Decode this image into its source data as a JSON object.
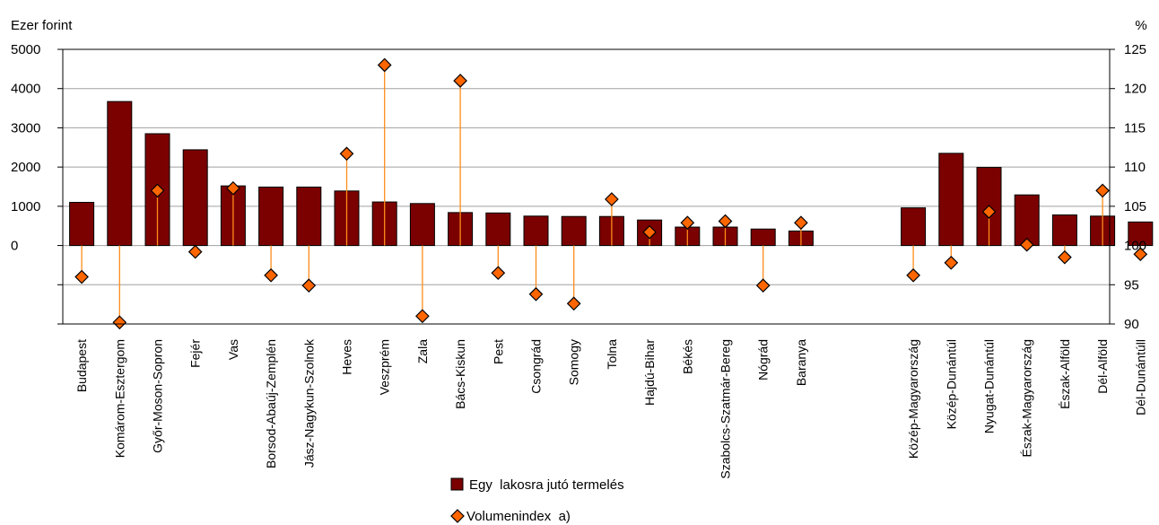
{
  "chart_data": {
    "type": "bar",
    "title": "",
    "ylabel_left": "Ezer forint",
    "ylabel_right": "%",
    "ylim_left": [
      -2000,
      5000
    ],
    "ylim_right": [
      90,
      125
    ],
    "left_ticks": [
      "5000",
      "4000",
      "3000",
      "2000",
      "1000",
      "0"
    ],
    "right_ticks": [
      "125",
      "120",
      "115",
      "110",
      "105",
      "100",
      "95",
      "90"
    ],
    "grid": true,
    "legend_position": "bottom-center",
    "colors": {
      "bar": "#7b0000",
      "marker": "#ff6600",
      "stem": "#ff8c1a",
      "grid": "#a0a0a0"
    },
    "categories": [
      "Budapest",
      "Komárom-Esztergom",
      "Győr-Moson-Sopron",
      "Fejér",
      "Vas",
      "Borsod-Abaúj-Zemplén",
      "Jász-Nagykun-Szolnok",
      "Heves",
      "Veszprém",
      "Zala",
      "Bács-Kiskun",
      "Pest",
      "Csongrád",
      "Somogy",
      "Tolna",
      "Hajdú-Bihar",
      "Békés",
      "Szabolcs-Szatmár-Bereg",
      "Nógrád",
      "Baranya",
      "Közép-Magyarország",
      "Közép-Dunántúl",
      "Nyugat-Dunántúl",
      "Észak-Magyarország",
      "Észak-Alföld",
      "Dél-Alföld",
      "Dél-Dunántúll"
    ],
    "series": [
      {
        "name": "Egy  lakosra jutó termelés",
        "type": "bar",
        "axis": "left",
        "values": [
          1100,
          3670,
          2850,
          2440,
          1520,
          1490,
          1490,
          1390,
          1110,
          1070,
          840,
          830,
          750,
          740,
          740,
          650,
          470,
          470,
          420,
          370,
          960,
          2350,
          1990,
          1290,
          780,
          750,
          600
        ]
      },
      {
        "name": "Volumenindex  a)",
        "type": "lollipop",
        "axis": "right",
        "baseline": 100,
        "values": [
          96.0,
          90.2,
          107.0,
          99.2,
          107.3,
          96.2,
          94.9,
          111.7,
          123.0,
          91.0,
          121.0,
          96.5,
          93.8,
          92.6,
          105.9,
          101.7,
          102.9,
          103.1,
          94.9,
          102.9,
          96.2,
          97.8,
          104.3,
          100.1,
          98.5,
          107.0,
          98.9
        ]
      }
    ]
  }
}
